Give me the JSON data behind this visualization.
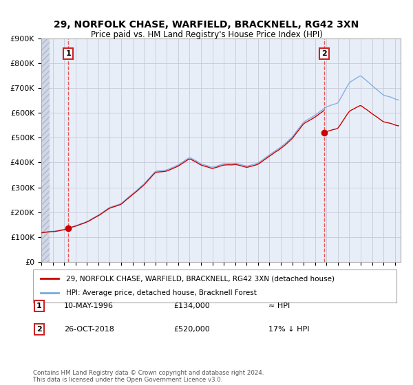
{
  "title": "29, NORFOLK CHASE, WARFIELD, BRACKNELL, RG42 3XN",
  "subtitle": "Price paid vs. HM Land Registry's House Price Index (HPI)",
  "ylim": [
    0,
    900000
  ],
  "yticks": [
    0,
    100000,
    200000,
    300000,
    400000,
    500000,
    600000,
    700000,
    800000,
    900000
  ],
  "ytick_labels": [
    "£0",
    "£100K",
    "£200K",
    "£300K",
    "£400K",
    "£500K",
    "£600K",
    "£700K",
    "£800K",
    "£900K"
  ],
  "xlim_start": 1994.0,
  "xlim_end": 2025.5,
  "background_color": "#ffffff",
  "plot_bg_color": "#e8eef8",
  "grid_color": "#c8c8d8",
  "hpi_color": "#7aaadd",
  "price_color": "#cc0000",
  "dashed_line_color": "#ee4444",
  "marker1_x": 1996.36,
  "marker1_y": 134000,
  "marker2_x": 2018.82,
  "marker2_y": 520000,
  "legend_entry1": "29, NORFOLK CHASE, WARFIELD, BRACKNELL, RG42 3XN (detached house)",
  "legend_entry2": "HPI: Average price, detached house, Bracknell Forest",
  "table_row1_num": "1",
  "table_row1_date": "10-MAY-1996",
  "table_row1_price": "£134,000",
  "table_row1_hpi": "≈ HPI",
  "table_row2_num": "2",
  "table_row2_date": "26-OCT-2018",
  "table_row2_price": "£520,000",
  "table_row2_hpi": "17% ↓ HPI",
  "footnote": "Contains HM Land Registry data © Crown copyright and database right 2024.\nThis data is licensed under the Open Government Licence v3.0."
}
